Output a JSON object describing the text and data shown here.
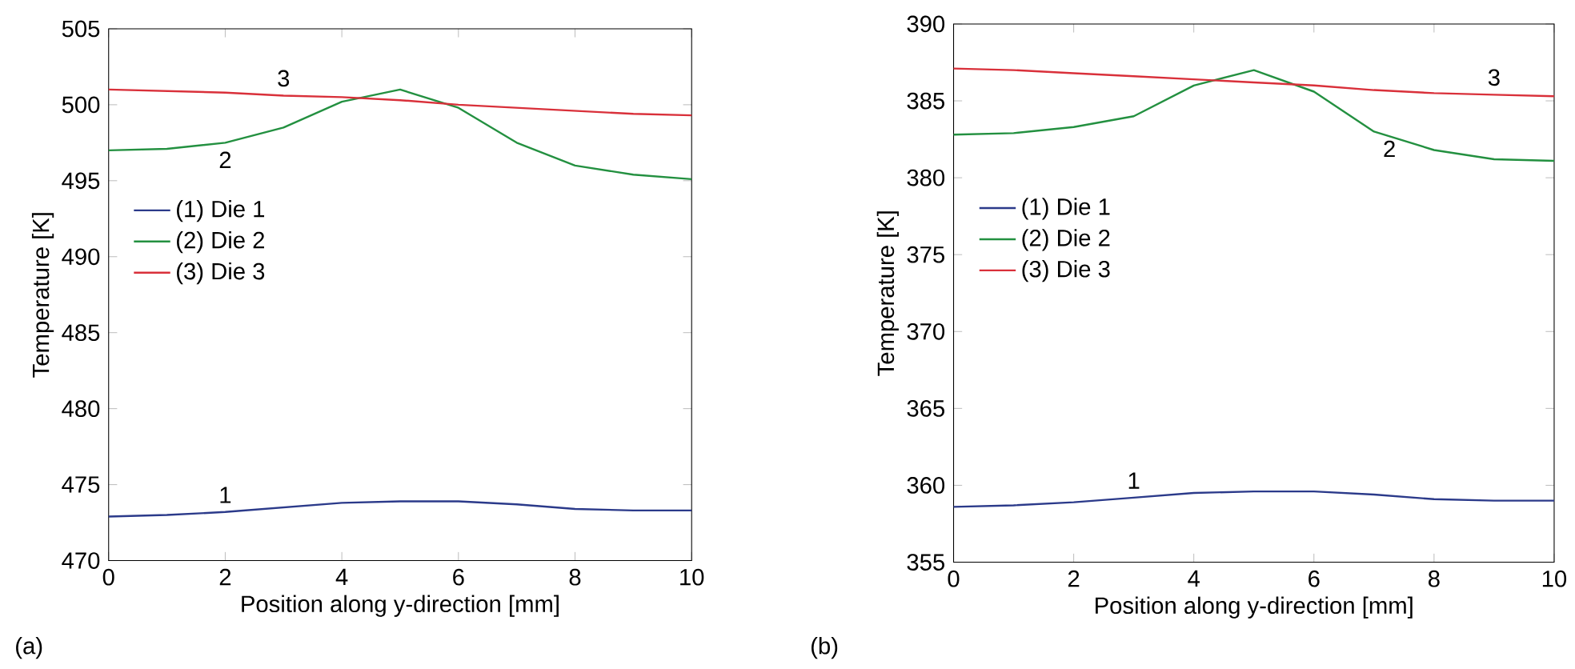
{
  "chart_data": [
    {
      "type": "line",
      "xlabel": "Position along y-direction [mm]",
      "ylabel": "Temperature [K]",
      "x": [
        0,
        1,
        2,
        3,
        4,
        5,
        6,
        7,
        8,
        9,
        10
      ],
      "series": [
        {
          "name": "(1)  Die 1",
          "color": "#2b3a8a",
          "values": [
            472.9,
            473.0,
            473.2,
            473.5,
            473.8,
            473.9,
            473.9,
            473.7,
            473.4,
            473.3,
            473.3
          ]
        },
        {
          "name": "(2)  Die 2",
          "color": "#239040",
          "values": [
            497.0,
            497.1,
            497.5,
            498.5,
            500.2,
            501.0,
            499.8,
            497.5,
            496.0,
            495.4,
            495.1
          ]
        },
        {
          "name": "(3)  Die 3",
          "color": "#d9303a",
          "values": [
            501.0,
            500.9,
            500.8,
            500.6,
            500.5,
            500.3,
            500.0,
            499.8,
            499.6,
            499.4,
            499.3
          ]
        }
      ],
      "xlim": [
        0,
        10
      ],
      "xticks": [
        0,
        2,
        4,
        6,
        8,
        10
      ],
      "ylim": [
        470,
        505
      ],
      "yticks": [
        470,
        475,
        480,
        485,
        490,
        495,
        500,
        505
      ],
      "legend": "left",
      "grid": false,
      "line_style": "solid",
      "annotations": [
        {
          "text": "3",
          "x": 3,
          "y": 500.6
        },
        {
          "text": "2",
          "x": 2,
          "y": 497.5
        },
        {
          "text": "1",
          "x": 2,
          "y": 473.2
        },
        "(a)"
      ]
    },
    {
      "type": "line",
      "xlabel": "Position along y-direction [mm]",
      "ylabel": "Temperature [K]",
      "x": [
        0,
        1,
        2,
        3,
        4,
        5,
        6,
        7,
        8,
        9,
        10
      ],
      "series": [
        {
          "name": "(1)  Die 1",
          "color": "#2b3a8a",
          "values": [
            358.6,
            358.7,
            358.9,
            359.2,
            359.5,
            359.6,
            359.6,
            359.4,
            359.1,
            359.0,
            359.0
          ]
        },
        {
          "name": "(2)  Die 2",
          "color": "#239040",
          "values": [
            382.8,
            382.9,
            383.3,
            384.0,
            386.0,
            387.0,
            385.6,
            383.0,
            381.8,
            381.2,
            381.1
          ]
        },
        {
          "name": "(3)  Die 3",
          "color": "#d9303a",
          "values": [
            387.1,
            387.0,
            386.8,
            386.6,
            386.4,
            386.2,
            386.0,
            385.7,
            385.5,
            385.4,
            385.3
          ]
        }
      ],
      "xlim": [
        0,
        10
      ],
      "xticks": [
        0,
        2,
        4,
        6,
        8,
        10
      ],
      "ylim": [
        355,
        390
      ],
      "yticks": [
        355,
        360,
        365,
        370,
        375,
        380,
        385,
        390
      ],
      "legend": "left",
      "grid": false,
      "line_style": "solid",
      "annotations": [
        {
          "text": "3",
          "x": 9,
          "y": 385.4
        },
        {
          "text": "2",
          "x": 7,
          "y": 383.0
        },
        {
          "text": "1",
          "x": 3,
          "y": 359.2
        },
        "(b)"
      ]
    }
  ]
}
